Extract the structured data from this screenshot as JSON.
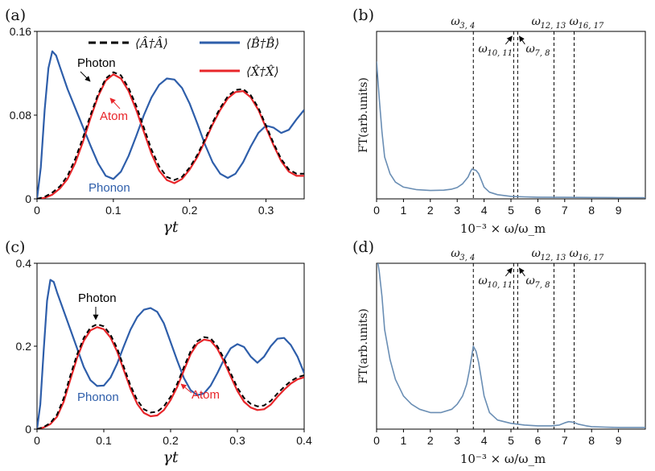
{
  "colors": {
    "photon": "#000000",
    "phonon": "#2E5EAA",
    "atom": "#E8262A",
    "spectrum": "#6A8EB4",
    "axis": "#000000"
  },
  "chart_data": [
    {
      "id": "a",
      "type": "line",
      "panel_label": "(a)",
      "xlabel": "γt",
      "ylabel": "",
      "xlim": [
        0,
        0.35
      ],
      "ylim": [
        0,
        0.16
      ],
      "xticks": [
        0,
        0.1,
        0.2,
        0.3
      ],
      "xtick_labels": [
        "0",
        "0.1",
        "0.2",
        "0.3"
      ],
      "yticks": [
        0,
        0.08,
        0.16
      ],
      "ytick_labels": [
        "0",
        "0.08",
        "0.16"
      ],
      "legend": {
        "placement": "top-right",
        "entries": [
          {
            "series": "photon",
            "label": "⟨Â†Â⟩"
          },
          {
            "series": "phonon",
            "label": "⟨B̂†B̂⟩"
          },
          {
            "series": "atom",
            "label": "⟨X̂†X̂⟩"
          }
        ]
      },
      "annotations": [
        {
          "text": "Photon",
          "series": "photon",
          "x": 0.095,
          "y": 0.118
        },
        {
          "text": "Atom",
          "series": "atom",
          "x": 0.1,
          "y": 0.111
        },
        {
          "text": "Phonon",
          "series": "phonon"
        }
      ],
      "series": [
        {
          "key": "photon",
          "style": "dashed",
          "x": [
            0,
            0.01,
            0.02,
            0.03,
            0.04,
            0.05,
            0.06,
            0.07,
            0.08,
            0.09,
            0.1,
            0.11,
            0.12,
            0.13,
            0.14,
            0.15,
            0.16,
            0.17,
            0.18,
            0.19,
            0.2,
            0.21,
            0.22,
            0.23,
            0.24,
            0.25,
            0.26,
            0.27,
            0.28,
            0.29,
            0.3,
            0.31,
            0.32,
            0.33,
            0.34,
            0.35
          ],
          "y": [
            0,
            0.002,
            0.006,
            0.012,
            0.022,
            0.038,
            0.058,
            0.08,
            0.1,
            0.115,
            0.121,
            0.118,
            0.106,
            0.089,
            0.068,
            0.047,
            0.031,
            0.021,
            0.018,
            0.021,
            0.03,
            0.042,
            0.057,
            0.073,
            0.087,
            0.098,
            0.104,
            0.105,
            0.099,
            0.087,
            0.07,
            0.053,
            0.038,
            0.028,
            0.024,
            0.024
          ]
        },
        {
          "key": "atom",
          "style": "solid",
          "x": [
            0,
            0.01,
            0.02,
            0.03,
            0.04,
            0.05,
            0.06,
            0.07,
            0.08,
            0.09,
            0.1,
            0.11,
            0.12,
            0.13,
            0.14,
            0.15,
            0.16,
            0.17,
            0.18,
            0.19,
            0.2,
            0.21,
            0.22,
            0.23,
            0.24,
            0.25,
            0.26,
            0.27,
            0.28,
            0.29,
            0.3,
            0.31,
            0.32,
            0.33,
            0.34,
            0.35
          ],
          "y": [
            0,
            0.001,
            0.004,
            0.01,
            0.019,
            0.034,
            0.054,
            0.077,
            0.098,
            0.113,
            0.119,
            0.115,
            0.103,
            0.085,
            0.064,
            0.043,
            0.027,
            0.018,
            0.015,
            0.019,
            0.028,
            0.04,
            0.055,
            0.071,
            0.085,
            0.096,
            0.102,
            0.103,
            0.097,
            0.085,
            0.068,
            0.051,
            0.036,
            0.026,
            0.022,
            0.022
          ]
        },
        {
          "key": "phonon",
          "style": "solid",
          "x": [
            0,
            0.005,
            0.01,
            0.015,
            0.02,
            0.025,
            0.03,
            0.04,
            0.05,
            0.06,
            0.07,
            0.08,
            0.09,
            0.1,
            0.11,
            0.12,
            0.13,
            0.14,
            0.15,
            0.16,
            0.17,
            0.18,
            0.19,
            0.2,
            0.21,
            0.22,
            0.23,
            0.24,
            0.25,
            0.26,
            0.27,
            0.28,
            0.29,
            0.3,
            0.31,
            0.32,
            0.33,
            0.34,
            0.35
          ],
          "y": [
            0,
            0.03,
            0.085,
            0.125,
            0.141,
            0.137,
            0.126,
            0.105,
            0.087,
            0.069,
            0.051,
            0.034,
            0.022,
            0.019,
            0.026,
            0.041,
            0.06,
            0.08,
            0.097,
            0.109,
            0.115,
            0.114,
            0.106,
            0.091,
            0.072,
            0.052,
            0.035,
            0.024,
            0.02,
            0.024,
            0.035,
            0.05,
            0.063,
            0.07,
            0.068,
            0.063,
            0.066,
            0.076,
            0.085
          ]
        }
      ]
    },
    {
      "id": "b",
      "type": "line",
      "panel_label": "(b)",
      "xlabel": "10⁻³ × ω/ω_m",
      "ylabel": "FT(arb.units)",
      "xlim": [
        0,
        10
      ],
      "ylim": [
        0,
        1
      ],
      "xticks": [
        0,
        1,
        2,
        3,
        4,
        5,
        6,
        7,
        8,
        9
      ],
      "xtick_labels": [
        "0",
        "1",
        "2",
        "3",
        "4",
        "5",
        "6",
        "7",
        "8",
        "9"
      ],
      "markers": [
        {
          "x": 3.6,
          "label": "ω",
          "sub": "3, 4"
        },
        {
          "x": 5.1,
          "label": "ω",
          "sub": "10, 11"
        },
        {
          "x": 5.25,
          "label": "ω",
          "sub": "7, 8"
        },
        {
          "x": 6.6,
          "label": "ω",
          "sub": "12, 13"
        },
        {
          "x": 7.35,
          "label": "ω",
          "sub": "16, 17"
        }
      ],
      "series": [
        {
          "key": "spectrum",
          "x": [
            0,
            0.1,
            0.2,
            0.3,
            0.5,
            0.7,
            1.0,
            1.5,
            2.0,
            2.5,
            2.8,
            3.0,
            3.2,
            3.4,
            3.5,
            3.55,
            3.6,
            3.7,
            3.8,
            3.9,
            4.0,
            4.2,
            4.5,
            5.0,
            5.5,
            6.0,
            7.0,
            8.0,
            9.0,
            10.0
          ],
          "y": [
            0.82,
            0.6,
            0.4,
            0.25,
            0.15,
            0.1,
            0.07,
            0.055,
            0.05,
            0.052,
            0.058,
            0.068,
            0.09,
            0.13,
            0.165,
            0.178,
            0.175,
            0.17,
            0.15,
            0.11,
            0.07,
            0.04,
            0.025,
            0.015,
            0.012,
            0.01,
            0.009,
            0.008,
            0.007,
            0.007
          ]
        }
      ]
    },
    {
      "id": "c",
      "type": "line",
      "panel_label": "(c)",
      "xlabel": "γt",
      "ylabel": "",
      "xlim": [
        0,
        0.4
      ],
      "ylim": [
        0,
        0.4
      ],
      "xticks": [
        0,
        0.1,
        0.2,
        0.3,
        0.4
      ],
      "xtick_labels": [
        "0",
        "0.1",
        "0.2",
        "0.3",
        "0.4"
      ],
      "yticks": [
        0,
        0.2,
        0.4
      ],
      "ytick_labels": [
        "0",
        "0.2",
        "0.4"
      ],
      "annotations": [
        {
          "text": "Photon",
          "series": "photon",
          "x": 0.09,
          "y": 0.25
        },
        {
          "text": "Atom",
          "series": "atom",
          "x": 0.2,
          "y": 0.04
        },
        {
          "text": "Phonon",
          "series": "phonon"
        }
      ],
      "series": [
        {
          "key": "photon",
          "style": "dashed",
          "x": [
            0,
            0.01,
            0.02,
            0.03,
            0.04,
            0.05,
            0.06,
            0.07,
            0.08,
            0.09,
            0.1,
            0.11,
            0.12,
            0.13,
            0.14,
            0.15,
            0.16,
            0.17,
            0.18,
            0.19,
            0.2,
            0.21,
            0.22,
            0.23,
            0.24,
            0.25,
            0.26,
            0.27,
            0.28,
            0.29,
            0.3,
            0.31,
            0.32,
            0.33,
            0.34,
            0.35,
            0.36,
            0.37,
            0.38,
            0.39,
            0.4
          ],
          "y": [
            0,
            0.005,
            0.015,
            0.035,
            0.075,
            0.13,
            0.18,
            0.22,
            0.245,
            0.253,
            0.248,
            0.228,
            0.195,
            0.15,
            0.105,
            0.07,
            0.048,
            0.04,
            0.042,
            0.055,
            0.078,
            0.11,
            0.15,
            0.188,
            0.212,
            0.222,
            0.219,
            0.2,
            0.17,
            0.135,
            0.1,
            0.075,
            0.061,
            0.055,
            0.057,
            0.068,
            0.086,
            0.102,
            0.116,
            0.125,
            0.13
          ]
        },
        {
          "key": "atom",
          "style": "solid",
          "x": [
            0,
            0.01,
            0.02,
            0.03,
            0.04,
            0.05,
            0.06,
            0.07,
            0.08,
            0.09,
            0.1,
            0.11,
            0.12,
            0.13,
            0.14,
            0.15,
            0.16,
            0.17,
            0.18,
            0.19,
            0.2,
            0.21,
            0.22,
            0.23,
            0.24,
            0.25,
            0.26,
            0.27,
            0.28,
            0.29,
            0.3,
            0.31,
            0.32,
            0.33,
            0.34,
            0.35,
            0.36,
            0.37,
            0.38,
            0.39,
            0.4
          ],
          "y": [
            0,
            0.004,
            0.012,
            0.03,
            0.066,
            0.12,
            0.172,
            0.213,
            0.238,
            0.246,
            0.241,
            0.221,
            0.187,
            0.142,
            0.097,
            0.061,
            0.039,
            0.031,
            0.033,
            0.046,
            0.07,
            0.102,
            0.142,
            0.181,
            0.206,
            0.216,
            0.213,
            0.194,
            0.163,
            0.127,
            0.092,
            0.066,
            0.052,
            0.046,
            0.048,
            0.059,
            0.078,
            0.095,
            0.11,
            0.12,
            0.125
          ]
        },
        {
          "key": "phonon",
          "style": "solid",
          "x": [
            0,
            0.005,
            0.01,
            0.015,
            0.02,
            0.025,
            0.03,
            0.04,
            0.05,
            0.06,
            0.07,
            0.08,
            0.09,
            0.1,
            0.11,
            0.12,
            0.13,
            0.14,
            0.15,
            0.16,
            0.17,
            0.18,
            0.19,
            0.2,
            0.21,
            0.22,
            0.23,
            0.24,
            0.25,
            0.26,
            0.27,
            0.28,
            0.29,
            0.3,
            0.31,
            0.32,
            0.33,
            0.34,
            0.35,
            0.36,
            0.37,
            0.38,
            0.39,
            0.4
          ],
          "y": [
            0,
            0.06,
            0.19,
            0.31,
            0.36,
            0.355,
            0.33,
            0.285,
            0.24,
            0.195,
            0.15,
            0.118,
            0.104,
            0.105,
            0.124,
            0.158,
            0.2,
            0.24,
            0.27,
            0.288,
            0.292,
            0.283,
            0.255,
            0.21,
            0.165,
            0.123,
            0.094,
            0.082,
            0.086,
            0.105,
            0.135,
            0.168,
            0.195,
            0.205,
            0.198,
            0.175,
            0.16,
            0.175,
            0.2,
            0.218,
            0.22,
            0.203,
            0.175,
            0.135
          ]
        }
      ]
    },
    {
      "id": "d",
      "type": "line",
      "panel_label": "(d)",
      "xlabel": "10⁻³ × ω/ω_m",
      "ylabel": "FT(arb.units)",
      "xlim": [
        0,
        10
      ],
      "ylim": [
        0,
        1
      ],
      "xticks": [
        0,
        1,
        2,
        3,
        4,
        5,
        6,
        7,
        8,
        9
      ],
      "xtick_labels": [
        "0",
        "1",
        "2",
        "3",
        "4",
        "5",
        "6",
        "7",
        "8",
        "9"
      ],
      "markers": [
        {
          "x": 3.6,
          "label": "ω",
          "sub": "3, 4"
        },
        {
          "x": 5.1,
          "label": "ω",
          "sub": "10, 11"
        },
        {
          "x": 5.25,
          "label": "ω",
          "sub": "7, 8"
        },
        {
          "x": 6.6,
          "label": "ω",
          "sub": "12, 13"
        },
        {
          "x": 7.35,
          "label": "ω",
          "sub": "16, 17"
        }
      ],
      "series": [
        {
          "key": "spectrum",
          "x": [
            0.05,
            0.1,
            0.2,
            0.3,
            0.5,
            0.7,
            1.0,
            1.3,
            1.6,
            2.0,
            2.4,
            2.8,
            3.0,
            3.2,
            3.35,
            3.45,
            3.55,
            3.6,
            3.7,
            3.8,
            3.9,
            4.0,
            4.2,
            4.5,
            5.0,
            5.5,
            6.0,
            6.5,
            6.8,
            7.0,
            7.15,
            7.3,
            7.5,
            7.8,
            8.0,
            8.5,
            9.0,
            9.5,
            10.0
          ],
          "y": [
            1.0,
            0.95,
            0.8,
            0.6,
            0.42,
            0.3,
            0.2,
            0.15,
            0.12,
            0.1,
            0.1,
            0.12,
            0.15,
            0.2,
            0.27,
            0.35,
            0.45,
            0.5,
            0.47,
            0.4,
            0.3,
            0.2,
            0.1,
            0.055,
            0.035,
            0.025,
            0.02,
            0.02,
            0.025,
            0.038,
            0.045,
            0.042,
            0.03,
            0.02,
            0.015,
            0.012,
            0.01,
            0.01,
            0.01
          ]
        }
      ]
    }
  ]
}
